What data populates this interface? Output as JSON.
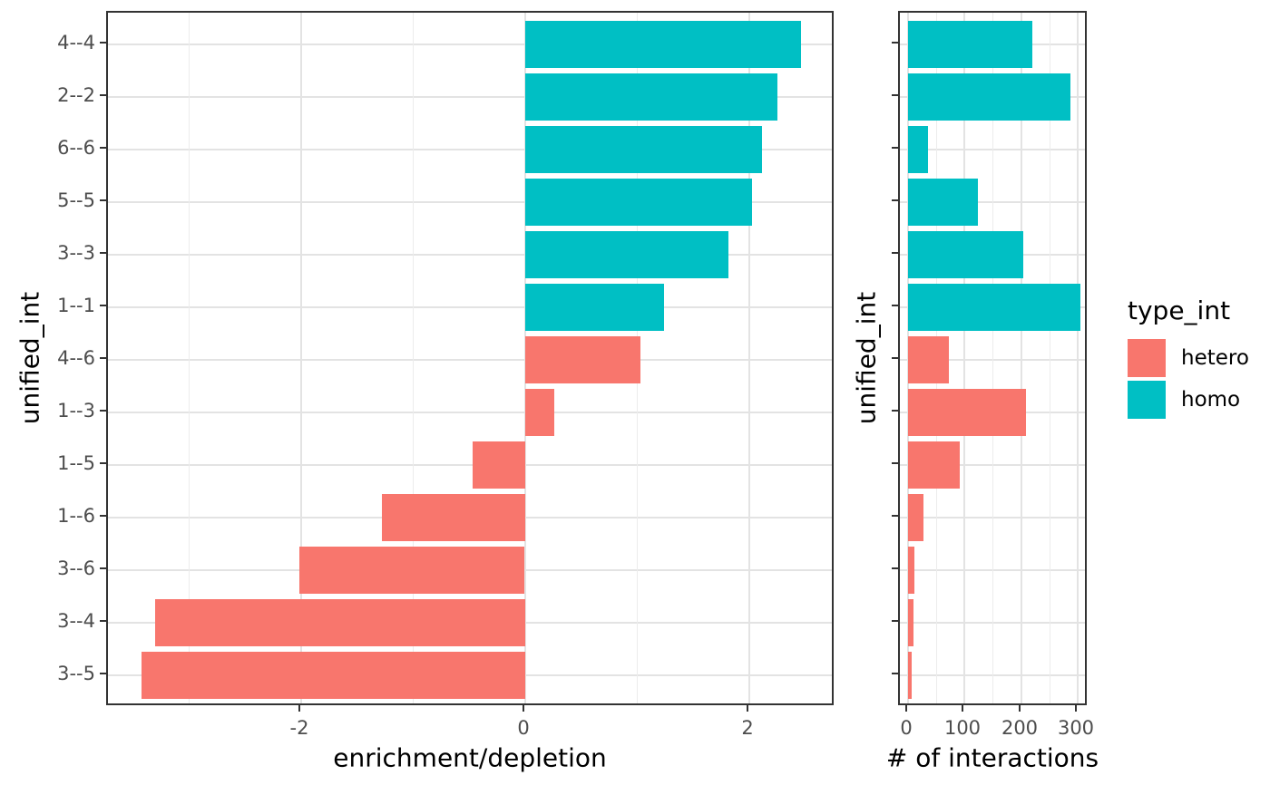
{
  "chart_data": [
    {
      "type": "bar",
      "orientation": "horizontal",
      "xlabel": "enrichment/depletion",
      "ylabel": "unified_int",
      "categories": [
        "4--4",
        "2--2",
        "6--6",
        "5--5",
        "3--3",
        "1--1",
        "4--6",
        "1--3",
        "1--5",
        "1--6",
        "3--6",
        "3--4",
        "3--5"
      ],
      "values": [
        2.46,
        2.25,
        2.11,
        2.02,
        1.81,
        1.24,
        1.03,
        0.26,
        -0.47,
        -1.28,
        -2.01,
        -3.3,
        -3.42
      ],
      "groups": [
        "homo",
        "homo",
        "homo",
        "homo",
        "homo",
        "homo",
        "hetero",
        "hetero",
        "hetero",
        "hetero",
        "hetero",
        "hetero",
        "hetero"
      ],
      "xlim": [
        -3.72,
        2.77
      ],
      "x_ticks": [
        -2,
        0,
        2
      ],
      "x_tick_labels": [
        "-2",
        "0",
        "2"
      ],
      "x_minor_gridlines": [
        -3,
        -1,
        1
      ],
      "grid": true,
      "show_y_tick_labels": true,
      "legend_position": "none"
    },
    {
      "type": "bar",
      "orientation": "horizontal",
      "xlabel": "# of interactions",
      "ylabel": "unified_int",
      "categories": [
        "4--4",
        "2--2",
        "6--6",
        "5--5",
        "3--3",
        "1--1",
        "4--6",
        "1--3",
        "1--5",
        "1--6",
        "3--6",
        "3--4",
        "3--5"
      ],
      "values": [
        220,
        287,
        36,
        124,
        204,
        305,
        72,
        209,
        91,
        27,
        12,
        9,
        7
      ],
      "groups": [
        "homo",
        "homo",
        "homo",
        "homo",
        "homo",
        "homo",
        "hetero",
        "hetero",
        "hetero",
        "hetero",
        "hetero",
        "hetero",
        "hetero"
      ],
      "xlim": [
        -14.4,
        319.3
      ],
      "x_ticks": [
        0,
        100,
        200,
        300
      ],
      "x_tick_labels": [
        "0",
        "100",
        "200",
        "300"
      ],
      "x_minor_gridlines": [
        50,
        150,
        250
      ],
      "grid": true,
      "show_y_tick_labels": false,
      "legend_position": "right"
    }
  ],
  "legend": {
    "title": "type_int",
    "entries": [
      {
        "label": "hetero",
        "color": "#F8766D"
      },
      {
        "label": "homo",
        "color": "#00BFC4"
      }
    ]
  },
  "colors": {
    "hetero": "#F8766D",
    "homo": "#00BFC4",
    "grid_major": "#e3e3e3",
    "grid_minor": "#ececec",
    "panel_border": "#333333",
    "tick_mark": "#333333",
    "tick_label": "#4d4d4d",
    "axis_title": "#000000"
  }
}
